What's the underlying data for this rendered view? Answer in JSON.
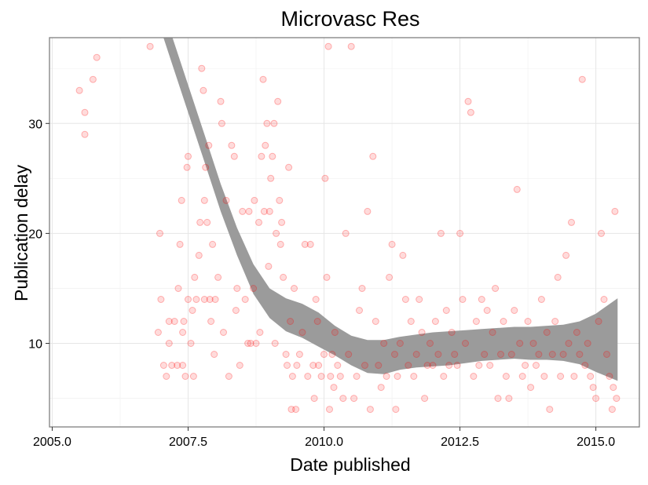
{
  "chart_data": {
    "type": "scatter",
    "title": "Microvasc Res",
    "xlabel": "Date published",
    "ylabel": "Publication delay",
    "xlim": [
      2004.95,
      2015.8
    ],
    "ylim": [
      2.4,
      37.8
    ],
    "x_ticks": [
      2005.0,
      2007.5,
      2010.0,
      2012.5,
      2015.0
    ],
    "x_tick_labels": [
      "2005.0",
      "2007.5",
      "2010.0",
      "2012.5",
      "2015.0"
    ],
    "y_ticks": [
      10,
      20,
      30
    ],
    "y_tick_labels": [
      "10",
      "20",
      "30"
    ],
    "grid": true,
    "point_color": "#ff0000",
    "smooth_color": "#999999",
    "points": [
      [
        2005.5,
        33
      ],
      [
        2005.6,
        31
      ],
      [
        2005.6,
        29
      ],
      [
        2005.75,
        34
      ],
      [
        2005.82,
        36
      ],
      [
        2006.8,
        37
      ],
      [
        2006.95,
        11
      ],
      [
        2006.98,
        20
      ],
      [
        2007.0,
        14
      ],
      [
        2007.05,
        8
      ],
      [
        2007.1,
        7
      ],
      [
        2007.15,
        12
      ],
      [
        2007.15,
        10
      ],
      [
        2007.2,
        8
      ],
      [
        2007.25,
        12
      ],
      [
        2007.3,
        8
      ],
      [
        2007.32,
        15
      ],
      [
        2007.35,
        19
      ],
      [
        2007.38,
        23
      ],
      [
        2007.4,
        11
      ],
      [
        2007.4,
        8
      ],
      [
        2007.42,
        12
      ],
      [
        2007.45,
        7
      ],
      [
        2007.48,
        26
      ],
      [
        2007.5,
        27
      ],
      [
        2007.5,
        14
      ],
      [
        2007.55,
        10
      ],
      [
        2007.58,
        13
      ],
      [
        2007.6,
        7
      ],
      [
        2007.62,
        16
      ],
      [
        2007.65,
        14
      ],
      [
        2007.7,
        18
      ],
      [
        2007.72,
        21
      ],
      [
        2007.75,
        35
      ],
      [
        2007.78,
        33
      ],
      [
        2007.8,
        23
      ],
      [
        2007.8,
        14
      ],
      [
        2007.82,
        26
      ],
      [
        2007.85,
        21
      ],
      [
        2007.88,
        28
      ],
      [
        2007.9,
        14
      ],
      [
        2007.92,
        12
      ],
      [
        2007.95,
        19
      ],
      [
        2007.98,
        9
      ],
      [
        2008.0,
        14
      ],
      [
        2008.05,
        16
      ],
      [
        2008.1,
        32
      ],
      [
        2008.12,
        30
      ],
      [
        2008.15,
        11
      ],
      [
        2008.2,
        23
      ],
      [
        2008.25,
        7
      ],
      [
        2008.3,
        28
      ],
      [
        2008.35,
        27
      ],
      [
        2008.38,
        13
      ],
      [
        2008.4,
        15
      ],
      [
        2008.45,
        8
      ],
      [
        2008.5,
        22
      ],
      [
        2008.55,
        14
      ],
      [
        2008.6,
        10
      ],
      [
        2008.62,
        22
      ],
      [
        2008.65,
        10
      ],
      [
        2008.7,
        15
      ],
      [
        2008.72,
        23
      ],
      [
        2008.75,
        10
      ],
      [
        2008.8,
        21
      ],
      [
        2008.82,
        11
      ],
      [
        2008.85,
        27
      ],
      [
        2008.88,
        34
      ],
      [
        2008.9,
        22
      ],
      [
        2008.92,
        28
      ],
      [
        2008.95,
        30
      ],
      [
        2008.98,
        17
      ],
      [
        2009.0,
        22
      ],
      [
        2009.02,
        25
      ],
      [
        2009.05,
        27
      ],
      [
        2009.08,
        30
      ],
      [
        2009.1,
        10
      ],
      [
        2009.12,
        20
      ],
      [
        2009.15,
        32
      ],
      [
        2009.18,
        23
      ],
      [
        2009.2,
        19
      ],
      [
        2009.22,
        21
      ],
      [
        2009.25,
        16
      ],
      [
        2009.3,
        9
      ],
      [
        2009.32,
        8
      ],
      [
        2009.35,
        26
      ],
      [
        2009.38,
        12
      ],
      [
        2009.4,
        4
      ],
      [
        2009.42,
        7
      ],
      [
        2009.45,
        15
      ],
      [
        2009.48,
        4
      ],
      [
        2009.5,
        8
      ],
      [
        2009.55,
        9
      ],
      [
        2009.6,
        11
      ],
      [
        2009.65,
        19
      ],
      [
        2009.7,
        7
      ],
      [
        2009.75,
        19
      ],
      [
        2009.8,
        8
      ],
      [
        2009.82,
        5
      ],
      [
        2009.85,
        14
      ],
      [
        2009.88,
        12
      ],
      [
        2009.9,
        8
      ],
      [
        2009.95,
        7
      ],
      [
        2010.0,
        9
      ],
      [
        2010.02,
        25
      ],
      [
        2010.05,
        16
      ],
      [
        2010.08,
        37
      ],
      [
        2010.1,
        4
      ],
      [
        2010.12,
        7
      ],
      [
        2010.15,
        9
      ],
      [
        2010.18,
        6
      ],
      [
        2010.2,
        11
      ],
      [
        2010.25,
        8
      ],
      [
        2010.3,
        7
      ],
      [
        2010.35,
        5
      ],
      [
        2010.4,
        20
      ],
      [
        2010.45,
        9
      ],
      [
        2010.5,
        37
      ],
      [
        2010.55,
        5
      ],
      [
        2010.6,
        7
      ],
      [
        2010.65,
        13
      ],
      [
        2010.7,
        15
      ],
      [
        2010.75,
        8
      ],
      [
        2010.8,
        22
      ],
      [
        2010.85,
        4
      ],
      [
        2010.9,
        27
      ],
      [
        2010.95,
        12
      ],
      [
        2011.0,
        8
      ],
      [
        2011.05,
        6
      ],
      [
        2011.1,
        10
      ],
      [
        2011.15,
        7
      ],
      [
        2011.2,
        16
      ],
      [
        2011.25,
        19
      ],
      [
        2011.3,
        9
      ],
      [
        2011.32,
        4
      ],
      [
        2011.35,
        7
      ],
      [
        2011.4,
        10
      ],
      [
        2011.45,
        18
      ],
      [
        2011.5,
        14
      ],
      [
        2011.55,
        8
      ],
      [
        2011.6,
        12
      ],
      [
        2011.65,
        7
      ],
      [
        2011.7,
        9
      ],
      [
        2011.75,
        14
      ],
      [
        2011.8,
        11
      ],
      [
        2011.85,
        5
      ],
      [
        2011.9,
        8
      ],
      [
        2011.95,
        10
      ],
      [
        2012.0,
        8
      ],
      [
        2012.05,
        12
      ],
      [
        2012.1,
        9
      ],
      [
        2012.15,
        20
      ],
      [
        2012.2,
        7
      ],
      [
        2012.25,
        13
      ],
      [
        2012.3,
        8
      ],
      [
        2012.35,
        11
      ],
      [
        2012.4,
        9
      ],
      [
        2012.45,
        8
      ],
      [
        2012.5,
        20
      ],
      [
        2012.55,
        14
      ],
      [
        2012.6,
        10
      ],
      [
        2012.65,
        32
      ],
      [
        2012.7,
        31
      ],
      [
        2012.75,
        7
      ],
      [
        2012.8,
        12
      ],
      [
        2012.85,
        8
      ],
      [
        2012.9,
        14
      ],
      [
        2012.95,
        9
      ],
      [
        2013.0,
        13
      ],
      [
        2013.05,
        8
      ],
      [
        2013.1,
        11
      ],
      [
        2013.15,
        15
      ],
      [
        2013.2,
        5
      ],
      [
        2013.25,
        9
      ],
      [
        2013.3,
        12
      ],
      [
        2013.35,
        7
      ],
      [
        2013.4,
        5
      ],
      [
        2013.45,
        9
      ],
      [
        2013.5,
        13
      ],
      [
        2013.55,
        24
      ],
      [
        2013.6,
        10
      ],
      [
        2013.65,
        7
      ],
      [
        2013.7,
        8
      ],
      [
        2013.75,
        12
      ],
      [
        2013.8,
        6
      ],
      [
        2013.85,
        10
      ],
      [
        2013.9,
        8
      ],
      [
        2013.95,
        9
      ],
      [
        2014.0,
        14
      ],
      [
        2014.05,
        7
      ],
      [
        2014.1,
        11
      ],
      [
        2014.15,
        4
      ],
      [
        2014.2,
        9
      ],
      [
        2014.25,
        12
      ],
      [
        2014.3,
        16
      ],
      [
        2014.35,
        7
      ],
      [
        2014.4,
        9
      ],
      [
        2014.45,
        18
      ],
      [
        2014.5,
        10
      ],
      [
        2014.55,
        21
      ],
      [
        2014.6,
        7
      ],
      [
        2014.65,
        11
      ],
      [
        2014.7,
        9
      ],
      [
        2014.75,
        34
      ],
      [
        2014.8,
        8
      ],
      [
        2014.85,
        10
      ],
      [
        2014.9,
        7
      ],
      [
        2014.95,
        6
      ],
      [
        2015.0,
        5
      ],
      [
        2015.05,
        12
      ],
      [
        2015.1,
        20
      ],
      [
        2015.15,
        14
      ],
      [
        2015.2,
        9
      ],
      [
        2015.25,
        7
      ],
      [
        2015.3,
        4
      ],
      [
        2015.32,
        6
      ],
      [
        2015.35,
        22
      ],
      [
        2015.38,
        5
      ]
    ],
    "smooth": {
      "x": [
        2006.9,
        2007.2,
        2007.5,
        2007.8,
        2008.1,
        2008.4,
        2008.7,
        2009.0,
        2009.3,
        2009.6,
        2009.9,
        2010.2,
        2010.5,
        2010.8,
        2011.1,
        2011.4,
        2011.7,
        2012.0,
        2012.3,
        2012.6,
        2012.9,
        2013.2,
        2013.5,
        2013.8,
        2014.1,
        2014.4,
        2014.7,
        2015.0,
        2015.4
      ],
      "lower": [
        40.0,
        35.5,
        31.0,
        26.5,
        22.0,
        18.0,
        14.5,
        12.3,
        11.1,
        10.5,
        9.7,
        8.9,
        8.0,
        7.3,
        7.2,
        7.6,
        7.8,
        7.9,
        8.0,
        8.2,
        8.4,
        8.5,
        8.6,
        8.5,
        8.5,
        8.4,
        8.1,
        7.4,
        6.6
      ],
      "upper": [
        42.0,
        38.0,
        33.5,
        29.0,
        24.5,
        20.5,
        17.2,
        15.0,
        14.1,
        13.6,
        12.8,
        11.6,
        10.7,
        10.3,
        10.3,
        10.6,
        10.8,
        11.0,
        11.1,
        11.2,
        11.3,
        11.4,
        11.5,
        11.5,
        11.6,
        11.7,
        12.0,
        12.7,
        14.1
      ]
    }
  }
}
